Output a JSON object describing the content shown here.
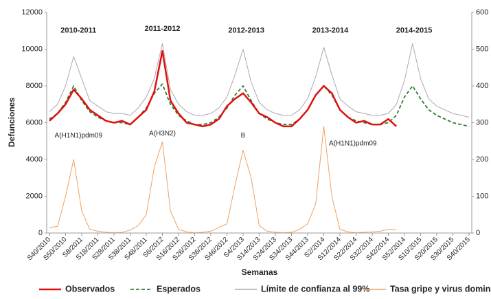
{
  "chart_data": {
    "type": "line",
    "x_label": "Semanas",
    "y_label": "Defunciones",
    "categories": [
      "S40/2010",
      null,
      "S50/2010",
      null,
      "S8/2011",
      null,
      "S18/2011",
      null,
      "S28/2011",
      null,
      "S38/2011",
      null,
      "S48/2011",
      null,
      "S6/2012",
      null,
      "S16/2012",
      null,
      "S26/2012",
      null,
      "S36/2012",
      null,
      "S46/2012",
      null,
      "S4/2013",
      null,
      "S14/2013",
      null,
      "S24/2013",
      null,
      "S34/2013",
      null,
      "S44/2013",
      null,
      "S2/2014",
      null,
      "S12/2014",
      null,
      "S22/2014",
      null,
      "S32/2014",
      null,
      "S42/2014",
      null,
      "S52/2014",
      null,
      "S10/2015",
      null,
      "S20/2015",
      null,
      "S30/2015",
      null,
      "S40/2015"
    ],
    "ylim": [
      0,
      12000
    ],
    "yticks": [
      0,
      2000,
      4000,
      6000,
      8000,
      10000,
      12000
    ],
    "y2lim": [
      0,
      600
    ],
    "y2ticks": [
      0,
      100,
      200,
      300,
      400,
      500,
      600
    ],
    "series": [
      {
        "name": "Observados",
        "color": "#e01010",
        "values": [
          6100,
          6500,
          7000,
          7800,
          7300,
          6700,
          6400,
          6100,
          6000,
          6100,
          5900,
          6300,
          6700,
          7700,
          9900,
          7200,
          6500,
          6000,
          5900,
          5800,
          5900,
          6200,
          6900,
          7300,
          7600,
          7100,
          6500,
          6300,
          6000,
          5800,
          5800,
          6200,
          6700,
          7500,
          8000,
          7600,
          6700,
          6300,
          6000,
          6100,
          5900,
          5900,
          6200,
          5800,
          null,
          null,
          null,
          null,
          null,
          null,
          null,
          null,
          null
        ]
      },
      {
        "name": "Esperados",
        "color": "#2e7d32",
        "values": [
          6200,
          6500,
          7100,
          8000,
          7200,
          6600,
          6300,
          6100,
          6000,
          6000,
          5900,
          6300,
          6800,
          7600,
          8100,
          7000,
          6400,
          6100,
          5900,
          5900,
          6000,
          6300,
          6800,
          7500,
          8000,
          7200,
          6500,
          6200,
          6000,
          5900,
          5900,
          6200,
          6700,
          7500,
          8000,
          7500,
          6700,
          6300,
          6100,
          6000,
          5900,
          5900,
          6000,
          6400,
          7400,
          8000,
          7300,
          6700,
          6400,
          6200,
          6000,
          5900,
          5800
        ]
      },
      {
        "name": "Límite de confianza al 99%",
        "color": "#aaaaaa",
        "values": [
          6600,
          7000,
          8000,
          9600,
          8400,
          7200,
          6900,
          6600,
          6500,
          6500,
          6400,
          6800,
          7400,
          8400,
          10300,
          7800,
          7000,
          6600,
          6400,
          6400,
          6500,
          6800,
          7400,
          8600,
          10000,
          8200,
          7100,
          6700,
          6500,
          6400,
          6400,
          6700,
          7300,
          8500,
          10100,
          8600,
          7300,
          6900,
          6600,
          6500,
          6400,
          6400,
          6500,
          7000,
          8300,
          10300,
          8400,
          7300,
          6900,
          6700,
          6500,
          6400,
          6300
        ]
      },
      {
        "name": "Tasa gripe y virus dominante",
        "color": "#f0a060",
        "axis": "y2",
        "values": [
          15,
          18,
          100,
          200,
          60,
          10,
          5,
          2,
          1,
          2,
          8,
          20,
          50,
          180,
          248,
          60,
          10,
          3,
          1,
          2,
          5,
          15,
          25,
          130,
          225,
          150,
          20,
          5,
          2,
          1,
          2,
          10,
          25,
          80,
          290,
          100,
          10,
          3,
          1,
          2,
          3,
          5,
          10,
          9,
          null,
          null,
          null,
          null,
          null,
          null,
          null,
          null,
          null
        ]
      }
    ],
    "annotations": [
      "2010-2011",
      "2011-2012",
      "2012-2013",
      "2013-2014",
      "2014-2015",
      "A(H1N1)pdm09",
      "A(H3N2)",
      "B",
      "A(H1N1)pdm09"
    ],
    "legend": "bottom"
  }
}
